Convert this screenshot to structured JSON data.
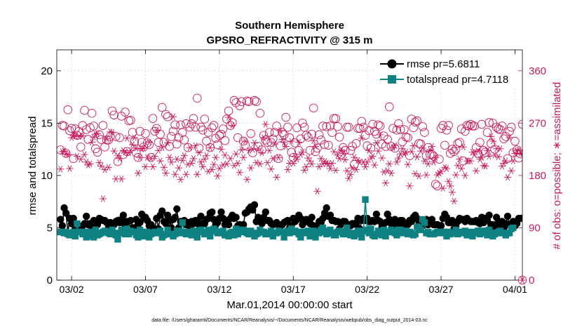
{
  "chart_data": {
    "type": "line",
    "title": "Southern Hemisphere",
    "subtitle": "GPSRO_REFRACTIVITY @ 315 m",
    "xlabel": "Mar.01,2014 00:00:00 start",
    "ylabel_left": "rmse and totalspread",
    "ylabel_right": "# of obs: o=possible; ∗=assimilated",
    "footnote": "data file: /Users/gharamti/Documents/NCAR/Reanalysis/~/Documents/NCAR/Reanalysis/webpub/obs_diag_output_2014-03.nc",
    "x_range_days": [
      0,
      31.5
    ],
    "y_left_range": [
      0,
      22
    ],
    "y_right_range": [
      0,
      396
    ],
    "x_ticks": [
      {
        "day": 1,
        "label": "03/02"
      },
      {
        "day": 6,
        "label": "03/07"
      },
      {
        "day": 11,
        "label": "03/12"
      },
      {
        "day": 16,
        "label": "03/17"
      },
      {
        "day": 21,
        "label": "03/22"
      },
      {
        "day": 26,
        "label": "03/27"
      },
      {
        "day": 31,
        "label": "04/01"
      }
    ],
    "y_left_ticks": [
      {
        "value": 0,
        "label": "0"
      },
      {
        "value": 5,
        "label": "5"
      },
      {
        "value": 10,
        "label": "10"
      },
      {
        "value": 15,
        "label": "15"
      },
      {
        "value": 20,
        "label": "20"
      }
    ],
    "y_right_ticks": [
      {
        "value": 0,
        "label": "0"
      },
      {
        "value": 90,
        "label": "90"
      },
      {
        "value": 180,
        "label": "180"
      },
      {
        "value": 270,
        "label": "270"
      },
      {
        "value": 360,
        "label": "360"
      }
    ],
    "grid": true,
    "legend_position": "top-right",
    "series": [
      {
        "name": "rmse pr=5.6811",
        "color": "#000000",
        "marker": "circle",
        "axis": "left",
        "values": [
          5.8,
          5.2,
          6.9,
          6.4,
          4.5,
          5.9,
          5.4,
          5.9,
          4.9,
          5.3,
          5.1,
          4.9,
          5.2,
          5.4,
          6.1,
          5.3,
          5.4,
          4.8,
          5.7,
          5.3,
          5.3,
          5.9,
          5.8,
          5.7,
          5.7,
          5.5,
          5.0,
          5.5,
          4.7,
          5.3,
          5.6,
          5.7,
          5.5,
          5.8,
          6.2,
          5.2,
          5.6,
          4.9,
          5.7,
          5.0,
          5.0,
          5.8,
          5.3,
          5.5,
          6.3,
          5.9,
          6.0,
          5.7,
          5.2,
          5.3,
          4.7,
          4.9,
          5.9,
          4.9,
          6.2,
          6.6,
          5.6,
          5.4,
          6.2,
          5.7,
          5.0,
          5.8,
          6.0,
          6.8,
          5.0,
          5.6,
          5.5,
          5.7,
          5.3,
          5.5,
          5.1,
          5.6,
          5.4,
          5.7,
          5.7,
          5.3,
          6.1,
          5.4,
          5.4,
          5.8,
          5.9,
          6.4,
          6.5,
          5.8,
          5.3,
          5.5,
          5.9,
          6.5,
          5.9,
          5.3,
          5.7,
          5.3,
          5.9,
          6.2,
          5.9,
          6.0,
          5.2,
          5.3,
          5.1,
          5.3,
          6.4,
          6.5,
          6.8,
          7.0,
          6.7,
          7.2,
          5.6,
          6.0,
          5.6,
          5.4,
          6.0,
          6.5,
          5.7,
          5.7,
          5.4,
          5.3,
          5.4,
          5.5,
          5.3,
          4.7,
          5.3,
          5.5,
          5.6,
          5.7,
          5.0,
          5.2,
          5.9,
          5.6,
          5.8,
          6.2,
          5.9,
          5.3,
          5.6,
          5.8,
          5.6,
          5.4,
          6.0,
          5.2,
          5.0,
          5.1,
          5.6,
          5.5,
          5.9,
          6.4,
          6.9,
          6.1,
          6.2,
          5.7,
          5.7,
          5.6,
          5.6,
          4.9,
          5.4,
          5.6,
          5.6,
          5.1,
          5.3,
          5.2,
          5.4,
          5.4,
          5.3,
          5.9,
          4.9,
          5.7,
          5.9,
          5.7,
          5.9,
          5.6,
          5.6,
          5.7,
          5.6,
          6.3,
          5.7,
          5.6,
          5.1,
          5.4,
          5.5,
          6.3,
          5.8,
          5.4,
          5.5,
          5.8,
          5.2,
          5.2,
          5.7,
          5.7,
          5.2,
          5.4,
          5.3,
          5.7,
          5.6,
          6.0,
          6.2,
          5.9,
          5.6,
          5.1,
          5.2,
          5.6,
          5.8,
          5.3,
          5.7,
          5.8,
          5.3,
          5.3,
          5.3,
          4.6,
          5.2,
          5.9,
          6.3,
          6.0,
          5.5,
          5.5,
          5.7,
          4.9,
          5.1,
          5.6,
          5.9,
          5.8,
          5.8,
          5.6,
          5.9,
          5.7,
          5.6,
          5.6,
          5.6,
          5.7,
          5.5,
          5.4,
          6.0,
          5.5,
          5.9,
          5.7,
          6.2,
          5.3,
          5.3,
          5.1,
          6.0,
          5.6,
          5.2,
          5.6,
          5.0,
          5.4,
          6.1,
          5.3,
          5.4,
          5.6,
          5.2,
          5.4,
          5.9,
          5.9
        ]
      },
      {
        "name": "totalspread pr=4.7118",
        "color": "#0e8283",
        "marker": "square",
        "axis": "left",
        "values": [
          4.6,
          4.6,
          4.5,
          4.6,
          4.4,
          4.3,
          4.5,
          4.6,
          4.2,
          5.4,
          4.6,
          4.6,
          4.4,
          4.6,
          4.1,
          4.2,
          4.6,
          4.5,
          4.1,
          4.8,
          4.3,
          4.4,
          4.5,
          4.6,
          4.7,
          4.6,
          4.5,
          4.4,
          4.8,
          4.5,
          4.3,
          3.9,
          4.5,
          4.8,
          4.6,
          4.4,
          4.9,
          4.4,
          4.7,
          4.6,
          4.6,
          4.3,
          4.1,
          4.8,
          4.6,
          4.2,
          4.3,
          4.6,
          4.1,
          4.4,
          4.5,
          4.6,
          4.5,
          4.6,
          4.7,
          4.1,
          4.3,
          4.4,
          4.8,
          4.4,
          4.4,
          4.2,
          4.4,
          4.7,
          4.7,
          4.5,
          5.5,
          4.6,
          4.4,
          4.5,
          4.6,
          4.3,
          4.7,
          4.5,
          4.1,
          4.7,
          4.8,
          4.6,
          4.4,
          4.5,
          4.8,
          4.2,
          4.7,
          4.9,
          4.7,
          4.5,
          4.6,
          4.5,
          4.7,
          4.3,
          4.4,
          4.2,
          4.5,
          4.6,
          4.3,
          4.9,
          4.4,
          4.8,
          4.6,
          4.8,
          4.7,
          4.5,
          4.4,
          4.7,
          4.5,
          4.2,
          4.4,
          4.5,
          4.8,
          4.6,
          4.6,
          4.4,
          4.4,
          4.5,
          4.7,
          4.2,
          4.5,
          4.5,
          4.7,
          4.6,
          4.6,
          4.1,
          4.6,
          4.7,
          4.5,
          4.9,
          4.6,
          4.7,
          4.6,
          4.4,
          4.1,
          4.6,
          4.6,
          4.5,
          4.7,
          4.2,
          4.7,
          4.7,
          4.1,
          4.6,
          4.5,
          4.8,
          5.0,
          4.6,
          4.4,
          4.7,
          4.8,
          4.5,
          4.3,
          4.3,
          4.6,
          4.7,
          4.6,
          4.4,
          4.4,
          5.0,
          4.5,
          4.3,
          4.5,
          4.2,
          4.4,
          4.7,
          4.4,
          4.1,
          4.7,
          7.7,
          4.8,
          4.5,
          4.9,
          4.3,
          4.2,
          4.4,
          4.7,
          4.5,
          4.3,
          4.8,
          4.2,
          4.6,
          4.6,
          4.8,
          4.7,
          4.5,
          4.3,
          4.8,
          4.8,
          4.5,
          4.7,
          4.7,
          4.4,
          4.6,
          4.5,
          4.3,
          4.4,
          5.1,
          5.0,
          4.8,
          5.8,
          5.5,
          4.5,
          4.6,
          4.4,
          4.4,
          4.4,
          4.5,
          4.6,
          4.6,
          4.5,
          4.6,
          4.6,
          4.2,
          4.6,
          4.4,
          4.5,
          4.5,
          4.8,
          4.4,
          4.6,
          4.6,
          4.5,
          4.7,
          4.3,
          4.4,
          4.6,
          4.2,
          4.5,
          4.6,
          4.7,
          4.4,
          4.7,
          4.5,
          4.7,
          4.3,
          4.8,
          4.5,
          4.2,
          4.4,
          4.5,
          4.6,
          4.7,
          4.5,
          4.5,
          4.3,
          4.5,
          4.5,
          4.9,
          5.0
        ]
      },
      {
        "name": "possible",
        "color": "#c8185a",
        "marker": "open-circle",
        "axis": "right",
        "values": [
          224,
          266,
          265,
          218,
          293,
          257,
          261,
          209,
          260,
          249,
          256,
          229,
          266,
          292,
          259,
          242,
          262,
          287,
          265,
          226,
          220,
          250,
          242,
          266,
          229,
          241,
          241,
          247,
          291,
          284,
          247,
          204,
          245,
          282,
          216,
          289,
          221,
          274,
          275,
          254,
          238,
          219,
          211,
          256,
          237,
          229,
          252,
          236,
          233,
          211,
          278,
          256,
          261,
          237,
          251,
          297,
          237,
          285,
          281,
          230,
          247,
          256,
          267,
          234,
          245,
          267,
          254,
          241,
          269,
          228,
          263,
          269,
          278,
          263,
          313,
          227,
          263,
          258,
          277,
          239,
          254,
          228,
          262,
          266,
          244,
          233,
          249,
          251,
          260,
          240,
          277,
          291,
          266,
          271,
          309,
          305,
          245,
          300,
          307,
          239,
          232,
          308,
          307,
          252,
          219,
          309,
          307,
          230,
          287,
          224,
          249,
          241,
          237,
          254,
          237,
          243,
          254,
          265,
          209,
          231,
          254,
          250,
          280,
          263,
          245,
          220,
          211,
          236,
          262,
          223,
          243,
          270,
          263,
          249,
          246,
          223,
          251,
          296,
          221,
          227,
          250,
          241,
          265,
          233,
          264,
          232,
          265,
          254,
          278,
          278,
          264,
          246,
          216,
          228,
          223,
          263,
          263,
          223,
          230,
          199,
          235,
          261,
          261,
          273,
          263,
          249,
          231,
          257,
          227,
          268,
          256,
          251,
          267,
          265,
          234,
          248,
          230,
          242,
          298,
          230,
          261,
          227,
          258,
          269,
          259,
          238,
          259,
          246,
          245,
          214,
          277,
          262,
          272,
          274,
          235,
          234,
          264,
          254,
          214,
          228,
          216,
          216,
          213,
          165,
          162,
          208,
          261,
          266,
          232,
          258,
          266,
          218,
          225,
          221,
          225,
          235,
          237,
          260,
          205,
          256,
          266,
          265,
          268,
          265,
          265,
          228,
          218,
          237,
          268,
          223,
          220,
          254,
          271,
          235,
          270,
          225,
          263,
          260,
          259,
          265,
          243,
          247,
          209,
          256,
          263,
          219,
          239,
          224,
          210,
          217,
          268
        ]
      },
      {
        "name": "assimilated",
        "color": "#c8185a",
        "marker": "asterisk",
        "axis": "right",
        "values": [
          191,
          221,
          222,
          217,
          216,
          192,
          245,
          249,
          248,
          213,
          247,
          208,
          248,
          216,
          203,
          198,
          200,
          237,
          246,
          251,
          252,
          202,
          196,
          140,
          190,
          243,
          194,
          255,
          254,
          222,
          174,
          214,
          209,
          174,
          223,
          220,
          244,
          219,
          223,
          233,
          245,
          227,
          184,
          211,
          226,
          227,
          195,
          211,
          237,
          209,
          195,
          213,
          258,
          223,
          205,
          228,
          194,
          184,
          236,
          211,
          203,
          281,
          182,
          208,
          193,
          173,
          206,
          214,
          182,
          199,
          228,
          201,
          209,
          231,
          182,
          219,
          203,
          195,
          208,
          214,
          187,
          228,
          190,
          199,
          211,
          179,
          192,
          225,
          198,
          215,
          200,
          280,
          209,
          266,
          197,
          217,
          201,
          185,
          224,
          211,
          239,
          173,
          223,
          193,
          225,
          236,
          202,
          226,
          200,
          219,
          245,
          268,
          202,
          223,
          191,
          209,
          234,
          177,
          211,
          257,
          242,
          237,
          230,
          190,
          201,
          239,
          201,
          212,
          208,
          237,
          216,
          220,
          189,
          195,
          210,
          205,
          200,
          240,
          230,
          153,
          195,
          209,
          200,
          204,
          201,
          200,
          192,
          201,
          221,
          189,
          215,
          209,
          224,
          218,
          207,
          188,
          175,
          182,
          193,
          211,
          190,
          206,
          203,
          244,
          203,
          195,
          203,
          223,
          210,
          213,
          198,
          236,
          222,
          250,
          210,
          186,
          167,
          188,
          200,
          184,
          228,
          231,
          203,
          210,
          217,
          226,
          217,
          220,
          199,
          162,
          221,
          231,
          183,
          212,
          179,
          222,
          227,
          205,
          181,
          200,
          224,
          230,
          203,
          211,
          181,
          184,
          187,
          158,
          194,
          192,
          170,
          162,
          151,
          136,
          181,
          197,
          208,
          192,
          229,
          180,
          205,
          205,
          205,
          220,
          216,
          188,
          222,
          208,
          211,
          197,
          196,
          223,
          213,
          247,
          239,
          215,
          226,
          212,
          226,
          196,
          201,
          205,
          177,
          245,
          188,
          205,
          218,
          223,
          224,
          218,
          217
        ]
      }
    ]
  }
}
